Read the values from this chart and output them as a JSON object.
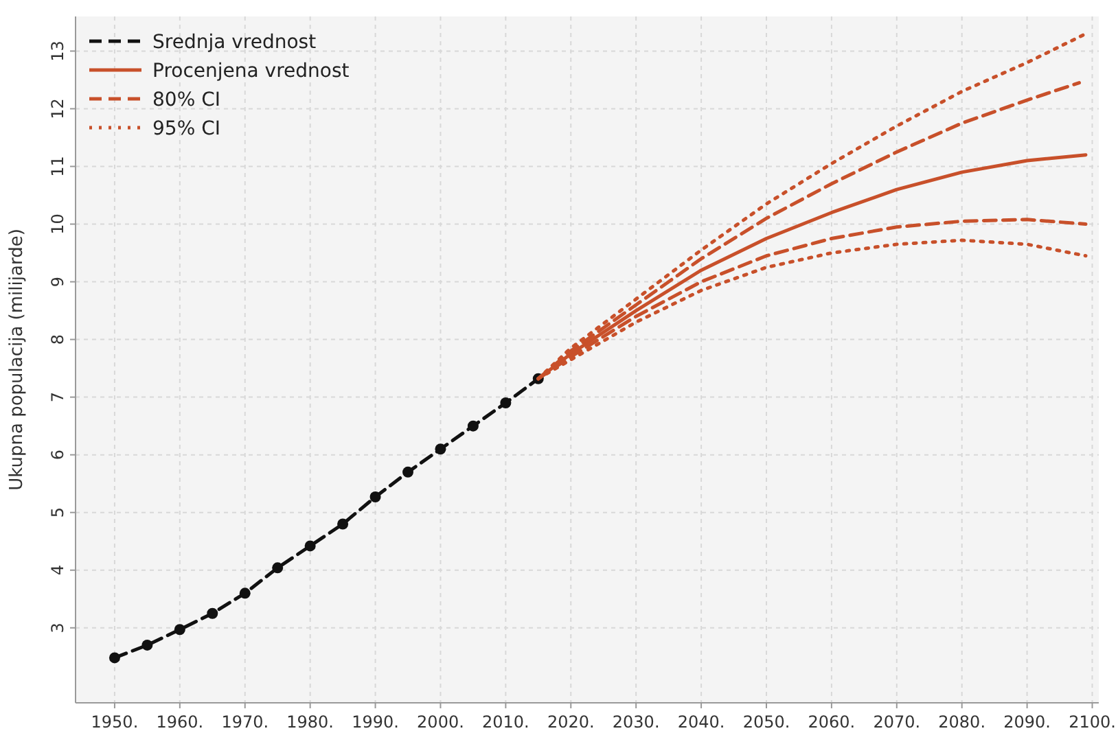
{
  "chart_data": {
    "type": "line",
    "ylabel": "Ukupna populacija (milijarde)",
    "xlim": [
      1944,
      2101
    ],
    "ylim": [
      1.7,
      13.6
    ],
    "xticks": [
      {
        "value": 1950,
        "label": "1950."
      },
      {
        "value": 1960,
        "label": "1960."
      },
      {
        "value": 1970,
        "label": "1970."
      },
      {
        "value": 1980,
        "label": "1980."
      },
      {
        "value": 1990,
        "label": "1990."
      },
      {
        "value": 2000,
        "label": "2000."
      },
      {
        "value": 2010,
        "label": "2010."
      },
      {
        "value": 2020,
        "label": "2020."
      },
      {
        "value": 2030,
        "label": "2030."
      },
      {
        "value": 2040,
        "label": "2040."
      },
      {
        "value": 2050,
        "label": "2050."
      },
      {
        "value": 2060,
        "label": "2060."
      },
      {
        "value": 2070,
        "label": "2070."
      },
      {
        "value": 2080,
        "label": "2080."
      },
      {
        "value": 2090,
        "label": "2090."
      },
      {
        "value": 2100,
        "label": "2100."
      }
    ],
    "yticks": [
      3,
      4,
      5,
      6,
      7,
      8,
      9,
      10,
      11,
      12,
      13
    ],
    "grid": true,
    "legend": "top left",
    "series": [
      {
        "name": "Srednja vrednost",
        "color": "#111111",
        "line_style": "dashed",
        "marker": "circle",
        "x": [
          1950,
          1955,
          1960,
          1965,
          1970,
          1975,
          1980,
          1985,
          1990,
          1995,
          2000,
          2005,
          2010,
          2015
        ],
        "values": [
          2.48,
          2.7,
          2.97,
          3.25,
          3.6,
          4.04,
          4.42,
          4.8,
          5.27,
          5.7,
          6.1,
          6.5,
          6.9,
          7.32
        ]
      },
      {
        "name": "Procenjena vrednost",
        "color": "#c8502a",
        "line_style": "solid",
        "marker": "none",
        "x": [
          2015,
          2020,
          2030,
          2040,
          2050,
          2060,
          2070,
          2080,
          2090,
          2099
        ],
        "values": [
          7.32,
          7.75,
          8.5,
          9.2,
          9.75,
          10.2,
          10.6,
          10.9,
          11.1,
          11.2
        ]
      },
      {
        "name": "80% CI",
        "color": "#c8502a",
        "line_style": "dashed",
        "marker": "none",
        "x": [
          2015,
          2020,
          2030,
          2040,
          2050,
          2060,
          2070,
          2080,
          2090,
          2098
        ],
        "values": [
          7.32,
          7.8,
          8.6,
          9.4,
          10.1,
          10.7,
          11.25,
          11.75,
          12.15,
          12.45
        ]
      },
      {
        "color": "#c8502a",
        "line_style": "dashed",
        "marker": "none",
        "x": [
          2015,
          2020,
          2030,
          2040,
          2050,
          2060,
          2070,
          2080,
          2090,
          2099
        ],
        "values": [
          7.32,
          7.7,
          8.4,
          9.0,
          9.45,
          9.75,
          9.95,
          10.05,
          10.08,
          10.0
        ]
      },
      {
        "name": "95% CI",
        "color": "#c8502a",
        "line_style": "dotted",
        "marker": "none",
        "x": [
          2015,
          2020,
          2030,
          2040,
          2050,
          2060,
          2070,
          2080,
          2090,
          2099
        ],
        "values": [
          7.32,
          7.85,
          8.7,
          9.55,
          10.35,
          11.05,
          11.7,
          12.3,
          12.8,
          13.3
        ]
      },
      {
        "color": "#c8502a",
        "line_style": "dotted",
        "marker": "none",
        "x": [
          2015,
          2020,
          2030,
          2040,
          2050,
          2060,
          2070,
          2080,
          2090,
          2099
        ],
        "values": [
          7.32,
          7.65,
          8.3,
          8.85,
          9.25,
          9.5,
          9.65,
          9.72,
          9.65,
          9.45
        ]
      }
    ]
  }
}
